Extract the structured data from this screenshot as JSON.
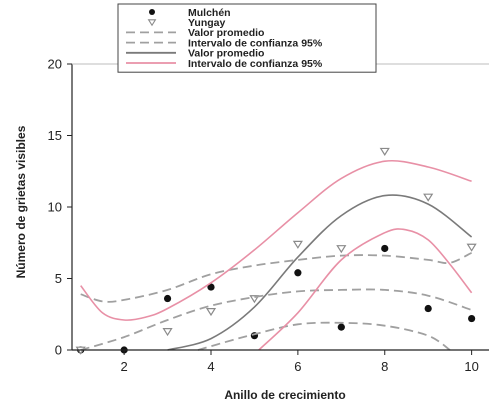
{
  "chart_data": {
    "type": "scatter",
    "xlabel": "Anillo de crecimiento",
    "ylabel": "Número de grietas visibles",
    "xlim": [
      0.8,
      10.4
    ],
    "ylim": [
      0,
      20
    ],
    "x_ticks": [
      2,
      4,
      6,
      8,
      10
    ],
    "y_ticks": [
      0,
      5,
      10,
      15,
      20
    ],
    "grid": false,
    "legend_position": "top-center",
    "series": [
      {
        "name": "Mulchén",
        "kind": "points",
        "marker": "circle",
        "color": "#111111",
        "x": [
          1,
          2,
          3,
          4,
          5,
          6,
          7,
          8,
          9,
          10
        ],
        "y": [
          0,
          0,
          3.6,
          4.4,
          1.0,
          5.4,
          1.6,
          7.1,
          2.9,
          2.2
        ]
      },
      {
        "name": "Yungay",
        "kind": "points",
        "marker": "triangle-down",
        "color": "#8a8a8a",
        "x": [
          1,
          3,
          4,
          5,
          6,
          7,
          8,
          9,
          10
        ],
        "y": [
          0,
          1.3,
          2.7,
          3.6,
          7.4,
          7.1,
          13.9,
          10.7,
          7.2
        ]
      },
      {
        "name": "Valor promedio",
        "kind": "line",
        "style": "dashed",
        "color": "#a0a0a0",
        "x": [
          1,
          2,
          3,
          4,
          5,
          6,
          7,
          8,
          9,
          10
        ],
        "y": [
          0,
          0.9,
          2.1,
          3.1,
          3.7,
          4.1,
          4.2,
          4.2,
          3.8,
          2.8
        ]
      },
      {
        "name": "Intervalo de confianza 95%",
        "kind": "line",
        "style": "dashed",
        "color": "#a0a0a0",
        "segments": [
          {
            "x": [
              1,
              1.5,
              2,
              3,
              4,
              5,
              6,
              7,
              8,
              9,
              9.5,
              10
            ],
            "y": [
              3.9,
              3.4,
              3.5,
              4.2,
              5.3,
              5.9,
              6.3,
              6.6,
              6.6,
              6.3,
              6.1,
              6.8
            ]
          },
          {
            "x": [
              3.7,
              4.5,
              5,
              6,
              7,
              8,
              9,
              9.5
            ],
            "y": [
              0,
              0.7,
              1.1,
              1.8,
              1.9,
              1.7,
              1.0,
              0
            ]
          }
        ]
      },
      {
        "name": "Valor promedio",
        "kind": "line",
        "style": "solid",
        "color": "#7a7a7a",
        "x": [
          3,
          4,
          5,
          6,
          7,
          8,
          9,
          10
        ],
        "y": [
          0,
          0.8,
          3.0,
          6.5,
          9.4,
          10.8,
          10.2,
          7.9
        ]
      },
      {
        "name": "Intervalo de confianza 95%",
        "kind": "line",
        "style": "solid",
        "color": "#e890a6",
        "segments": [
          {
            "x": [
              1,
              1.5,
              2,
              2.5,
              3,
              4,
              5,
              6,
              7,
              8,
              9,
              10
            ],
            "y": [
              4.5,
              2.6,
              2.1,
              2.3,
              2.9,
              4.7,
              7.0,
              9.6,
              12.0,
              13.2,
              12.8,
              11.8
            ]
          },
          {
            "x": [
              5.1,
              6,
              7,
              8,
              8.5,
              9,
              9.5,
              10
            ],
            "y": [
              0,
              2.6,
              6.3,
              8.2,
              8.4,
              7.7,
              6.0,
              4.0
            ]
          }
        ]
      }
    ]
  }
}
